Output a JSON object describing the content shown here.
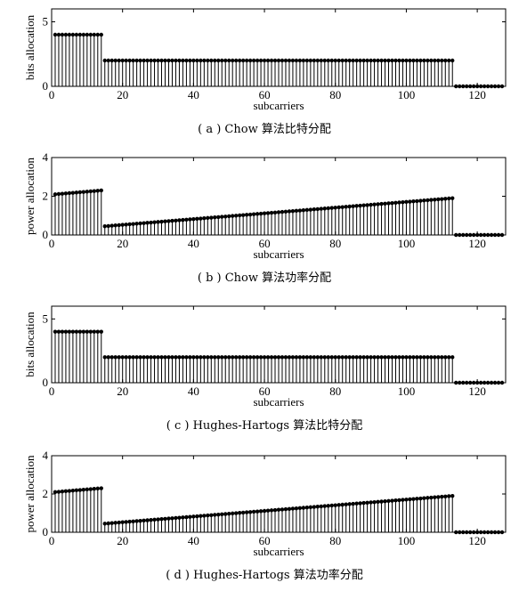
{
  "chart_data": [
    {
      "type": "stem",
      "caption": "( a ) Chow 算法比特分配",
      "xlabel": "subcarriers",
      "ylabel": "bits allocation",
      "xlim": [
        0,
        128
      ],
      "ylim": [
        0,
        6
      ],
      "xticks": [
        0,
        20,
        40,
        60,
        80,
        100,
        120
      ],
      "yticks": [
        0,
        5
      ],
      "segments": [
        {
          "from": 1,
          "to": 14,
          "start": 4,
          "end": 4
        },
        {
          "from": 15,
          "to": 113,
          "start": 2,
          "end": 2
        },
        {
          "from": 114,
          "to": 127,
          "start": 0,
          "end": 0
        }
      ]
    },
    {
      "type": "stem",
      "caption": "( b ) Chow 算法功率分配",
      "xlabel": "subcarriers",
      "ylabel": "power allocation",
      "xlim": [
        0,
        128
      ],
      "ylim": [
        0,
        4
      ],
      "xticks": [
        0,
        20,
        40,
        60,
        80,
        100,
        120
      ],
      "yticks": [
        0,
        2,
        4
      ],
      "segments": [
        {
          "from": 1,
          "to": 14,
          "start": 2.1,
          "end": 2.3
        },
        {
          "from": 15,
          "to": 113,
          "start": 0.45,
          "end": 1.9
        },
        {
          "from": 114,
          "to": 127,
          "start": 0,
          "end": 0
        }
      ]
    },
    {
      "type": "stem",
      "caption": "( c ) Hughes-Hartogs 算法比特分配",
      "xlabel": "subcarriers",
      "ylabel": "bits allocation",
      "xlim": [
        0,
        128
      ],
      "ylim": [
        0,
        6
      ],
      "xticks": [
        0,
        20,
        40,
        60,
        80,
        100,
        120
      ],
      "yticks": [
        0,
        5
      ],
      "segments": [
        {
          "from": 1,
          "to": 14,
          "start": 4,
          "end": 4
        },
        {
          "from": 15,
          "to": 113,
          "start": 2,
          "end": 2
        },
        {
          "from": 114,
          "to": 127,
          "start": 0,
          "end": 0
        }
      ]
    },
    {
      "type": "stem",
      "caption": "( d ) Hughes-Hartogs 算法功率分配",
      "xlabel": "subcarriers",
      "ylabel": "power allocation",
      "xlim": [
        0,
        128
      ],
      "ylim": [
        0,
        4
      ],
      "xticks": [
        0,
        20,
        40,
        60,
        80,
        100,
        120
      ],
      "yticks": [
        0,
        2,
        4
      ],
      "segments": [
        {
          "from": 1,
          "to": 14,
          "start": 2.1,
          "end": 2.3
        },
        {
          "from": 15,
          "to": 113,
          "start": 0.45,
          "end": 1.9
        },
        {
          "from": 114,
          "to": 127,
          "start": 0,
          "end": 0
        }
      ]
    }
  ]
}
